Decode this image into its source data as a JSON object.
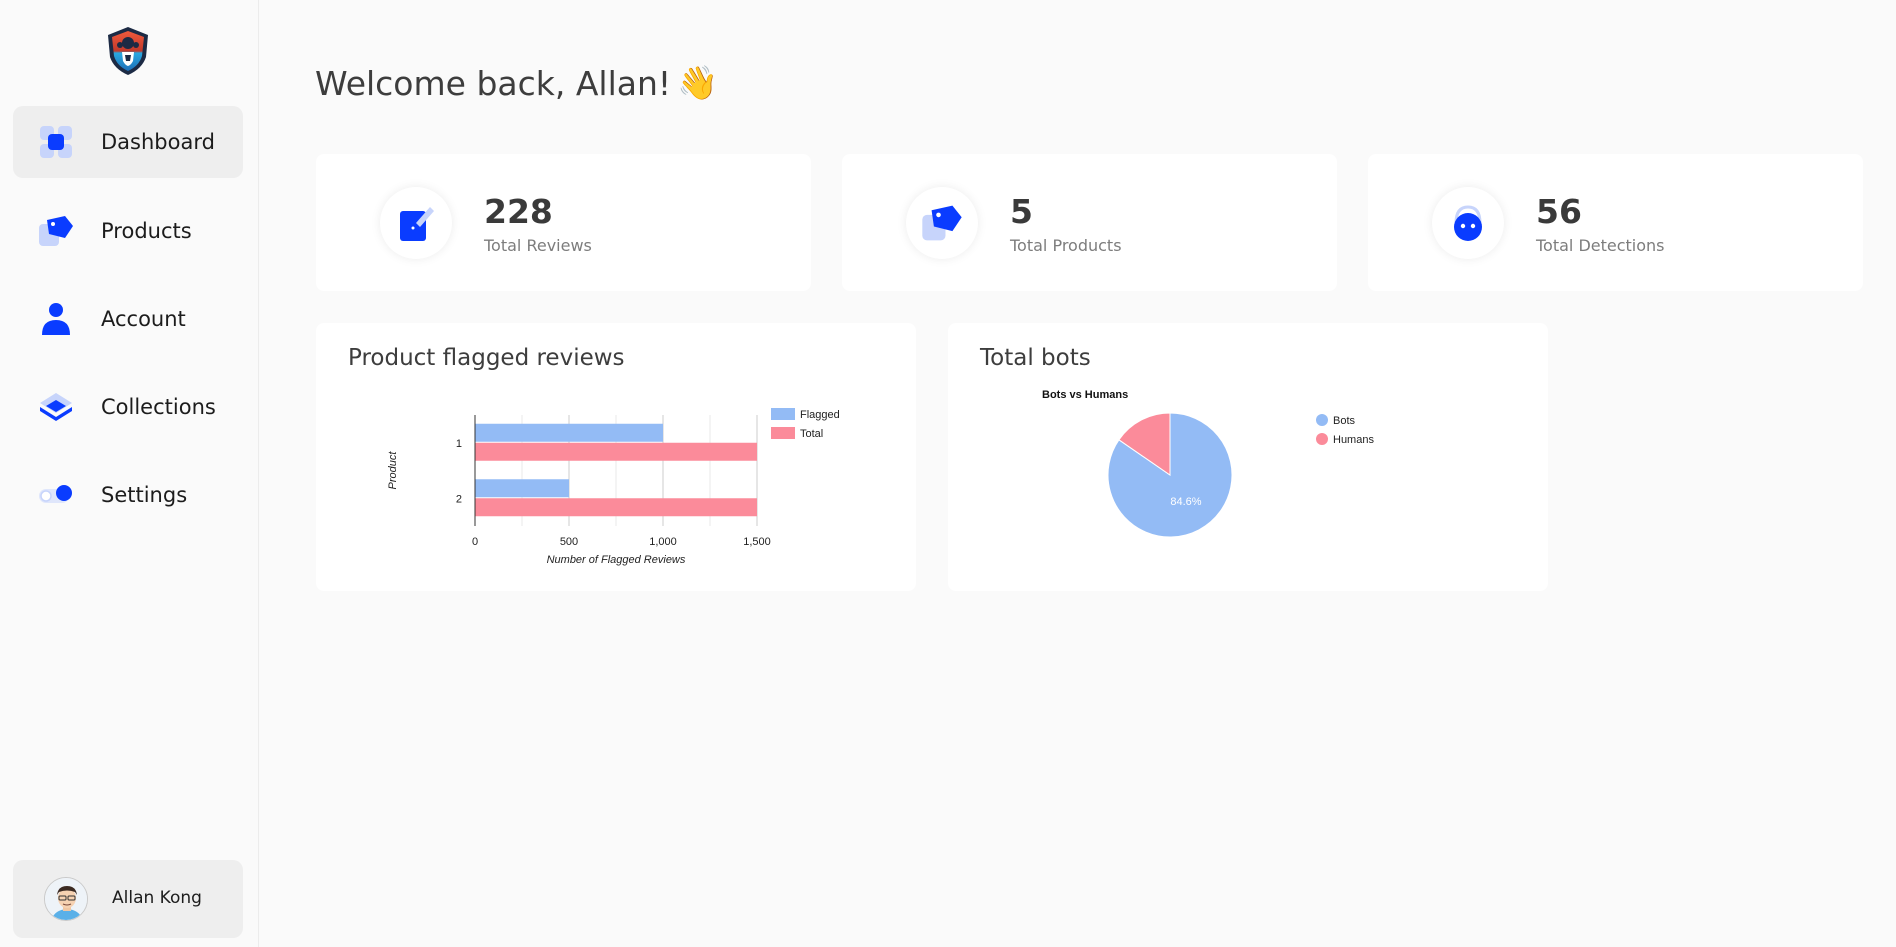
{
  "colors": {
    "accent": "#0a3cff",
    "flagged": "#93bbf5",
    "total": "#fb8b9a",
    "sidebar_active": "#eeeeee"
  },
  "sidebar": {
    "logo_icon": "shield-logo-icon",
    "items": [
      {
        "label": "Dashboard",
        "icon": "dashboard-grid-icon",
        "active": true
      },
      {
        "label": "Products",
        "icon": "price-tag-icon",
        "active": false
      },
      {
        "label": "Account",
        "icon": "person-icon",
        "active": false
      },
      {
        "label": "Collections",
        "icon": "layers-icon",
        "active": false
      },
      {
        "label": "Settings",
        "icon": "toggle-icon",
        "active": false
      }
    ],
    "user": {
      "name": "Allan Kong",
      "avatar_icon": "user-avatar-icon"
    }
  },
  "main": {
    "welcome": "Welcome back, Allan!",
    "welcome_emoji": "👋",
    "stats": [
      {
        "value": "228",
        "label": "Total Reviews",
        "icon": "edit-review-icon"
      },
      {
        "value": "5",
        "label": "Total Products",
        "icon": "price-tag-icon"
      },
      {
        "value": "56",
        "label": "Total Detections",
        "icon": "robot-icon"
      }
    ],
    "panels": {
      "flagged_title": "Product flagged reviews",
      "bots_title": "Total bots"
    }
  },
  "chart_data": [
    {
      "type": "bar",
      "orientation": "horizontal",
      "categories": [
        "1",
        "2"
      ],
      "series": [
        {
          "name": "Flagged",
          "values": [
            1000,
            500
          ]
        },
        {
          "name": "Total",
          "values": [
            1500,
            1500
          ]
        }
      ],
      "xlabel": "Number of Flagged Reviews",
      "ylabel": "Product",
      "xlim": [
        0,
        1500
      ],
      "xticks": [
        "0",
        "500",
        "1,000",
        "1,500"
      ],
      "legend": "right",
      "grid": true
    },
    {
      "type": "pie",
      "title": "Bots vs Humans",
      "labels": [
        "Bots",
        "Humans"
      ],
      "values": [
        84.6,
        15.4
      ],
      "slice_label": "84.6%",
      "legend": "right"
    }
  ]
}
